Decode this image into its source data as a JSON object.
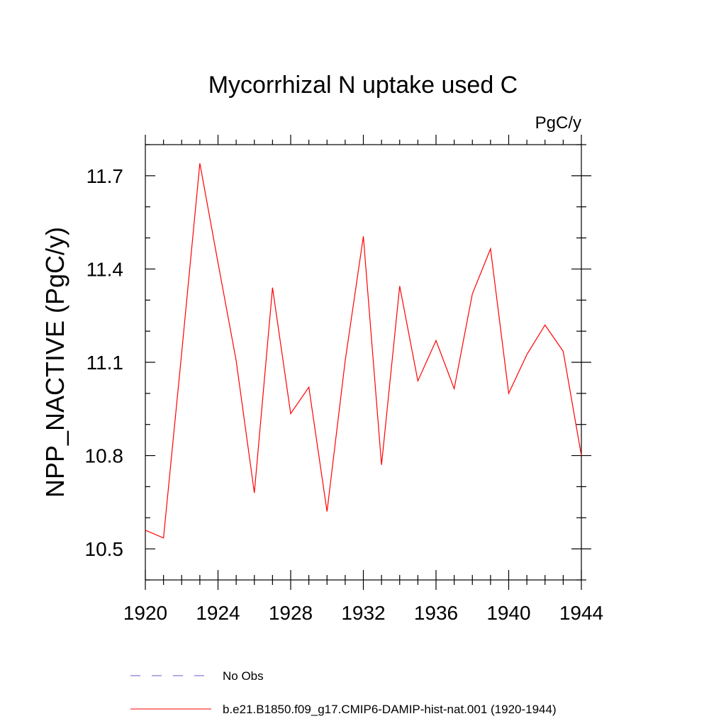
{
  "chart_data": {
    "type": "line",
    "title": "Mycorrhizal N uptake used C",
    "units": "PgC/y",
    "xlabel": "",
    "ylabel": "NPP_NACTIVE  (PgC/y)",
    "xlim": [
      1920,
      1944
    ],
    "ylim": [
      10.4,
      11.8
    ],
    "x_ticks": [
      1920,
      1924,
      1928,
      1932,
      1936,
      1940,
      1944
    ],
    "y_ticks": [
      10.5,
      10.8,
      11.1,
      11.4,
      11.7
    ],
    "y_tick_labels": [
      "10.5",
      "10.8",
      "11.1",
      "11.4",
      "11.7"
    ],
    "x_minor_step": 1,
    "y_minor_step": 0.1,
    "grid": false,
    "legend_position": "bottom",
    "series": [
      {
        "name": "b.e21.B1850.f09_g17.CMIP6-DAMIP-hist-nat.001 (1920-1944)",
        "color": "#ff0000",
        "style": "solid",
        "x": [
          1920,
          1921,
          1922,
          1923,
          1924,
          1925,
          1926,
          1927,
          1928,
          1929,
          1930,
          1931,
          1932,
          1933,
          1934,
          1935,
          1936,
          1937,
          1938,
          1939,
          1940,
          1941,
          1942,
          1943,
          1944
        ],
        "values": [
          10.56,
          10.535,
          11.13,
          11.74,
          11.42,
          11.105,
          10.68,
          11.34,
          10.935,
          11.02,
          10.62,
          11.105,
          11.505,
          10.77,
          11.345,
          11.04,
          11.17,
          11.015,
          11.32,
          11.465,
          11.0,
          11.125,
          11.22,
          11.135,
          10.8
        ]
      }
    ],
    "legend": [
      {
        "label": "No Obs",
        "color": "#6a5acd",
        "style": "dashed"
      },
      {
        "label": "b.e21.B1850.f09_g17.CMIP6-DAMIP-hist-nat.001 (1920-1944)",
        "color": "#ff0000",
        "style": "solid"
      }
    ]
  }
}
